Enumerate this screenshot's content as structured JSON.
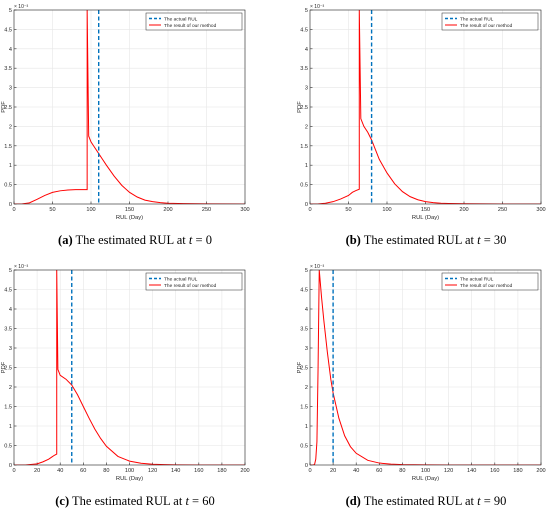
{
  "chart_data": [
    {
      "type": "line",
      "panel": "a",
      "caption": {
        "label": "(a)",
        "text": "The estimated RUL at ",
        "variable": "t",
        "equals": " = 0"
      },
      "xlabel": "RUL (Day)",
      "ylabel": "PDF",
      "y_exponent": "× 10⁻³",
      "xlim": [
        0,
        300
      ],
      "ylim": [
        0,
        5
      ],
      "xticks": [
        "0",
        "50",
        "100",
        "150",
        "200",
        "250",
        "300"
      ],
      "yticks": [
        "0",
        "0.5",
        "1",
        "1.5",
        "2",
        "2.5",
        "3",
        "3.5",
        "4",
        "4.5",
        "5"
      ],
      "grid": true,
      "legend": {
        "position": "top-right",
        "entries": [
          "The actual RUL",
          "The result of our method"
        ]
      },
      "actual_rul": 110,
      "series": [
        {
          "name": "The result of our method",
          "x": [
            0,
            10,
            20,
            30,
            40,
            50,
            60,
            70,
            80,
            90,
            95,
            95,
            97,
            100,
            105,
            110,
            115,
            120,
            130,
            140,
            150,
            160,
            170,
            180,
            190,
            200,
            220,
            250,
            300
          ],
          "y": [
            0,
            0,
            0.03,
            0.12,
            0.22,
            0.3,
            0.34,
            0.36,
            0.37,
            0.37,
            0.37,
            5,
            1.75,
            1.6,
            1.45,
            1.3,
            1.15,
            1.0,
            0.72,
            0.48,
            0.3,
            0.18,
            0.1,
            0.06,
            0.035,
            0.02,
            0.01,
            0.003,
            0
          ]
        }
      ]
    },
    {
      "type": "line",
      "panel": "b",
      "caption": {
        "label": "(b)",
        "text": "The estimated RUL at ",
        "variable": "t",
        "equals": " = 30"
      },
      "xlabel": "RUL (Day)",
      "ylabel": "PDF",
      "y_exponent": "× 10⁻³",
      "xlim": [
        0,
        300
      ],
      "ylim": [
        0,
        5
      ],
      "xticks": [
        "0",
        "50",
        "100",
        "150",
        "200",
        "250",
        "300"
      ],
      "yticks": [
        "0",
        "0.5",
        "1",
        "1.5",
        "2",
        "2.5",
        "3",
        "3.5",
        "4",
        "4.5",
        "5"
      ],
      "grid": true,
      "legend": {
        "position": "top-right",
        "entries": [
          "The actual RUL",
          "The result of our method"
        ]
      },
      "actual_rul": 80,
      "series": [
        {
          "name": "The result of our method",
          "x": [
            0,
            10,
            20,
            30,
            40,
            50,
            55,
            60,
            64,
            64,
            66,
            70,
            75,
            80,
            85,
            90,
            100,
            110,
            120,
            130,
            140,
            150,
            160,
            170,
            180,
            200,
            250,
            300
          ],
          "y": [
            0,
            0,
            0.02,
            0.06,
            0.13,
            0.22,
            0.3,
            0.35,
            0.38,
            5,
            2.2,
            2.0,
            1.85,
            1.65,
            1.4,
            1.15,
            0.8,
            0.52,
            0.32,
            0.19,
            0.11,
            0.06,
            0.035,
            0.02,
            0.012,
            0.005,
            0.001,
            0
          ]
        }
      ]
    },
    {
      "type": "line",
      "panel": "c",
      "caption": {
        "label": "(c)",
        "text": "The estimated RUL at ",
        "variable": "t",
        "equals": " = 60"
      },
      "xlabel": "RUL (Day)",
      "ylabel": "PDF",
      "y_exponent": "× 10⁻³",
      "xlim": [
        0,
        200
      ],
      "ylim": [
        0,
        5
      ],
      "xticks": [
        "0",
        "20",
        "40",
        "60",
        "80",
        "100",
        "120",
        "140",
        "160",
        "180",
        "200"
      ],
      "yticks": [
        "0",
        "0.5",
        "1",
        "1.5",
        "2",
        "2.5",
        "3",
        "3.5",
        "4",
        "4.5",
        "5"
      ],
      "grid": true,
      "legend": {
        "position": "top-right",
        "entries": [
          "The actual RUL",
          "The result of our method"
        ]
      },
      "actual_rul": 50,
      "series": [
        {
          "name": "The result of our method",
          "x": [
            0,
            10,
            20,
            25,
            30,
            33,
            35,
            37,
            37,
            38,
            40,
            45,
            50,
            55,
            60,
            65,
            70,
            75,
            80,
            90,
            100,
            110,
            120,
            130,
            140,
            160,
            200
          ],
          "y": [
            0,
            0,
            0.03,
            0.08,
            0.15,
            0.21,
            0.25,
            0.28,
            5,
            2.45,
            2.3,
            2.2,
            2.05,
            1.8,
            1.5,
            1.2,
            0.92,
            0.68,
            0.48,
            0.22,
            0.1,
            0.045,
            0.02,
            0.009,
            0.004,
            0.001,
            0
          ]
        }
      ]
    },
    {
      "type": "line",
      "panel": "d",
      "caption": {
        "label": "(d)",
        "text": "The estimated RUL at ",
        "variable": "t",
        "equals": " = 90"
      },
      "xlabel": "RUL (Day)",
      "ylabel": "PDF",
      "y_exponent": "× 10⁻³",
      "xlim": [
        0,
        200
      ],
      "ylim": [
        0,
        5
      ],
      "xticks": [
        "0",
        "20",
        "40",
        "60",
        "80",
        "100",
        "120",
        "140",
        "160",
        "180",
        "200"
      ],
      "yticks": [
        "0",
        "0.5",
        "1",
        "1.5",
        "2",
        "2.5",
        "3",
        "3.5",
        "4",
        "4.5",
        "5"
      ],
      "grid": true,
      "legend": {
        "position": "top-right",
        "entries": [
          "The actual RUL",
          "The result of our method"
        ]
      },
      "actual_rul": 20,
      "series": [
        {
          "name": "The result of our method",
          "x": [
            0,
            3,
            4,
            5,
            6,
            7,
            8,
            10,
            12,
            15,
            18,
            20,
            25,
            30,
            35,
            40,
            50,
            60,
            70,
            80,
            100,
            120,
            150,
            200
          ],
          "y": [
            0,
            0,
            0.02,
            0.15,
            0.6,
            2.5,
            5,
            4.3,
            3.7,
            2.9,
            2.2,
            1.85,
            1.2,
            0.75,
            0.47,
            0.3,
            0.12,
            0.05,
            0.022,
            0.01,
            0.002,
            0.0005,
            0,
            0
          ]
        }
      ]
    }
  ],
  "colors": {
    "actual_rul": "#0072BD",
    "estimate": "#FF0000",
    "grid": "#e6e6e6",
    "axis": "#262626"
  }
}
